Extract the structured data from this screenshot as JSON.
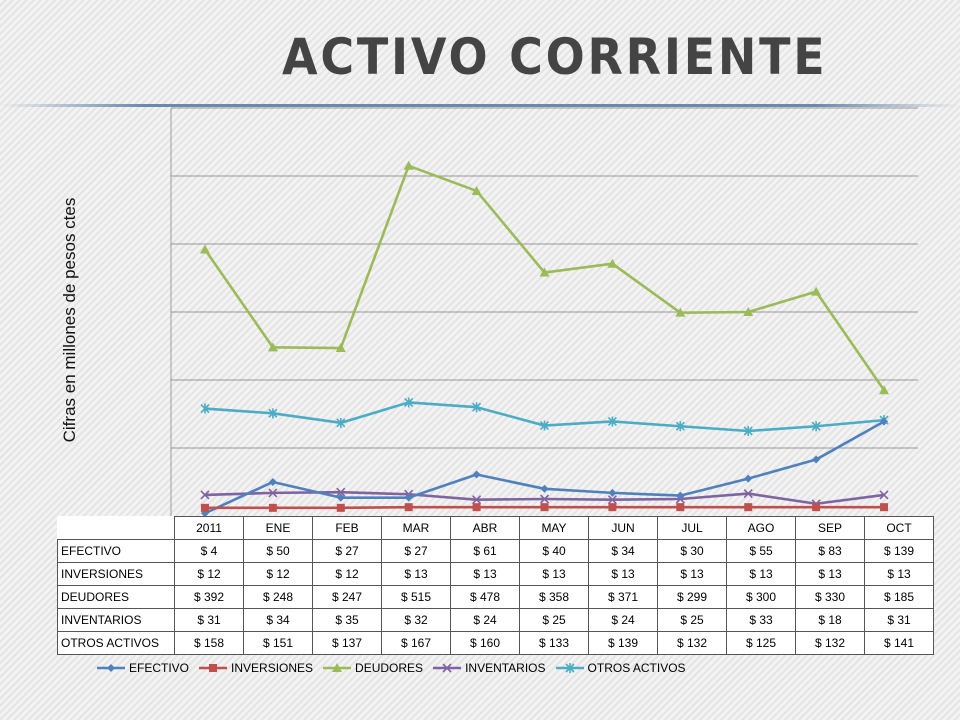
{
  "slide": {
    "title": "ACTIVO CORRIENTE"
  },
  "chart_data": {
    "type": "line",
    "title": "",
    "xlabel": "",
    "ylabel": "Cifras en millones de pesos ctes",
    "categories": [
      "2011",
      "ENE",
      "FEB",
      "MAR",
      "ABR",
      "MAY",
      "JUN",
      "JUL",
      "AGO",
      "SEP",
      "OCT"
    ],
    "ylim": [
      0,
      600
    ],
    "grid": true,
    "legend": "bottom",
    "series": [
      {
        "name": "EFECTIVO",
        "color": "#4f81bd",
        "marker": "diamond",
        "values": [
          4,
          50,
          27,
          27,
          61,
          40,
          34,
          30,
          55,
          83,
          139
        ],
        "labels": [
          "$ 4",
          "$ 50",
          "$ 27",
          "$ 27",
          "$ 61",
          "$ 40",
          "$ 34",
          "$ 30",
          "$ 55",
          "$ 83",
          "$ 139"
        ]
      },
      {
        "name": "INVERSIONES",
        "color": "#c0504d",
        "marker": "square",
        "values": [
          12,
          12,
          12,
          13,
          13,
          13,
          13,
          13,
          13,
          13,
          13
        ],
        "labels": [
          "$ 12",
          "$ 12",
          "$ 12",
          "$ 13",
          "$ 13",
          "$ 13",
          "$ 13",
          "$ 13",
          "$ 13",
          "$ 13",
          "$ 13"
        ]
      },
      {
        "name": "DEUDORES",
        "color": "#9bbb59",
        "marker": "triangle",
        "values": [
          392,
          248,
          247,
          515,
          478,
          358,
          371,
          299,
          300,
          330,
          185
        ],
        "labels": [
          "$ 392",
          "$ 248",
          "$ 247",
          "$ 515",
          "$ 478",
          "$ 358",
          "$ 371",
          "$ 299",
          "$ 300",
          "$ 330",
          "$ 185"
        ]
      },
      {
        "name": "INVENTARIOS",
        "color": "#8064a2",
        "marker": "x",
        "values": [
          31,
          34,
          35,
          32,
          24,
          25,
          24,
          25,
          33,
          18,
          31
        ],
        "labels": [
          "$ 31",
          "$ 34",
          "$ 35",
          "$ 32",
          "$ 24",
          "$ 25",
          "$ 24",
          "$ 25",
          "$ 33",
          "$ 18",
          "$ 31"
        ]
      },
      {
        "name": "OTROS ACTIVOS",
        "color": "#4bacc6",
        "marker": "star",
        "values": [
          158,
          151,
          137,
          167,
          160,
          133,
          139,
          132,
          125,
          132,
          141
        ],
        "labels": [
          "$ 158",
          "$ 151",
          "$ 137",
          "$ 167",
          "$ 160",
          "$ 133",
          "$ 139",
          "$ 132",
          "$ 125",
          "$ 132",
          "$ 141"
        ]
      }
    ]
  }
}
